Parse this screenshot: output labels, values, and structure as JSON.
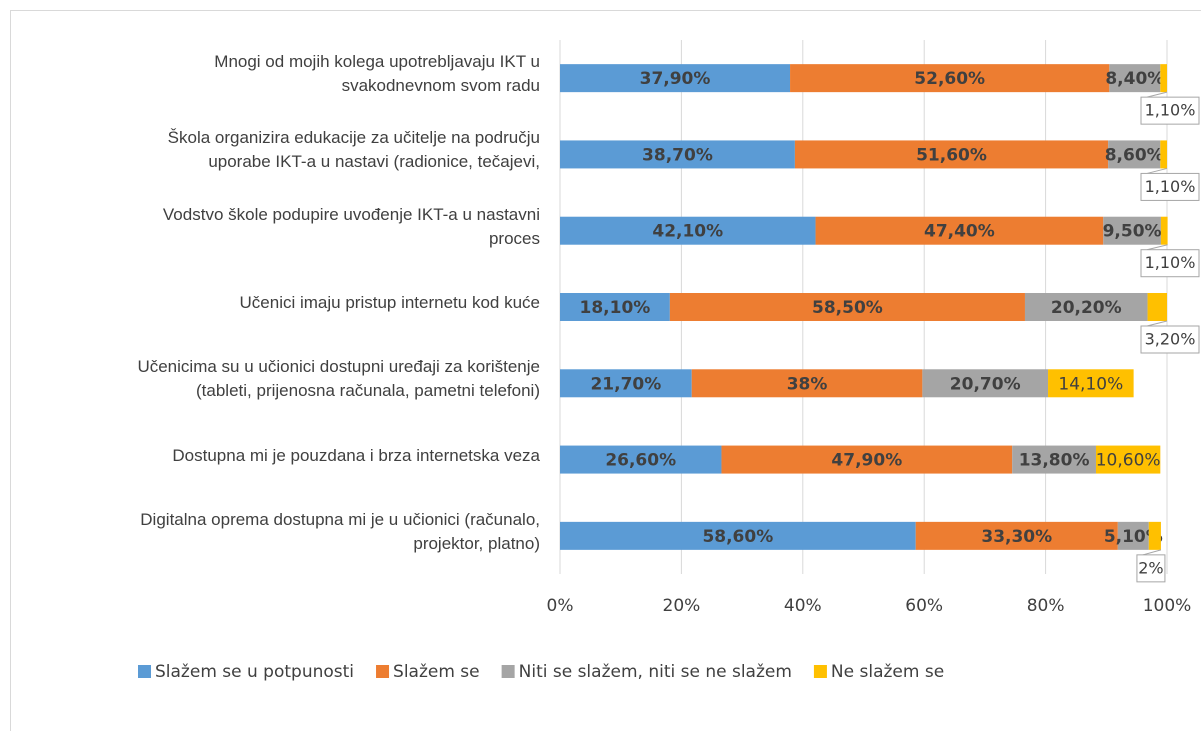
{
  "chart_data": {
    "type": "bar",
    "orientation": "horizontal",
    "stacked": true,
    "categories": [
      "Mnogi od mojih kolega upotrebljavaju IKT u\nsvakodnevnom svom radu",
      "Škola organizira edukacije za učitelje na području\nuporabe IKT-a u nastavi (radionice, tečajevi,",
      "Vodstvo škole podupire uvođenje IKT-a u nastavni\nproces",
      "Učenici imaju pristup internetu kod kuće",
      "Učenicima su u učionici dostupni uređaji za korištenje\n(tableti, prijenosna računala, pametni telefoni)",
      "Dostupna mi je pouzdana i brza internetska veza",
      "Digitalna oprema dostupna mi je u učionici (računalo,\nprojektor, platno)"
    ],
    "series": [
      {
        "name": "Slažem se u potpunosti",
        "color": "#5b9bd5",
        "values": [
          37.9,
          38.7,
          42.1,
          18.1,
          21.7,
          26.6,
          58.6
        ],
        "value_labels": [
          "37,90%",
          "38,70%",
          "42,10%",
          "18,10%",
          "21,70%",
          "26,60%",
          "58,60%"
        ]
      },
      {
        "name": "Slažem se",
        "color": "#ed7d31",
        "values": [
          52.6,
          51.6,
          47.4,
          58.5,
          38,
          47.9,
          33.3
        ],
        "value_labels": [
          "52,60%",
          "51,60%",
          "47,40%",
          "58,50%",
          "38%",
          "47,90%",
          "33,30%"
        ]
      },
      {
        "name": "Niti se slažem, niti se ne slažem",
        "color": "#a5a5a5",
        "values": [
          8.4,
          8.6,
          9.5,
          20.2,
          20.7,
          13.8,
          5.1
        ],
        "value_labels": [
          "8,40%",
          "8,60%",
          "9,50%",
          "20,20%",
          "20,70%",
          "13,80%",
          "5,10%"
        ]
      },
      {
        "name": "Ne slažem se",
        "color": "#ffc000",
        "values": [
          1.1,
          1.1,
          1.1,
          3.2,
          14.1,
          10.6,
          2
        ],
        "value_labels": [
          "1,10%",
          "1,10%",
          "1,10%",
          "3,20%",
          "14,10%",
          "10,60%",
          "2%"
        ]
      }
    ],
    "xlim": [
      0,
      100
    ],
    "xticks": [
      {
        "value": 0,
        "label": "0%"
      },
      {
        "value": 20,
        "label": "20%"
      },
      {
        "value": 40,
        "label": "40%"
      },
      {
        "value": 60,
        "label": "60%"
      },
      {
        "value": 80,
        "label": "80%"
      },
      {
        "value": 100,
        "label": "100%"
      }
    ],
    "grid": true,
    "legend": "bottom"
  }
}
